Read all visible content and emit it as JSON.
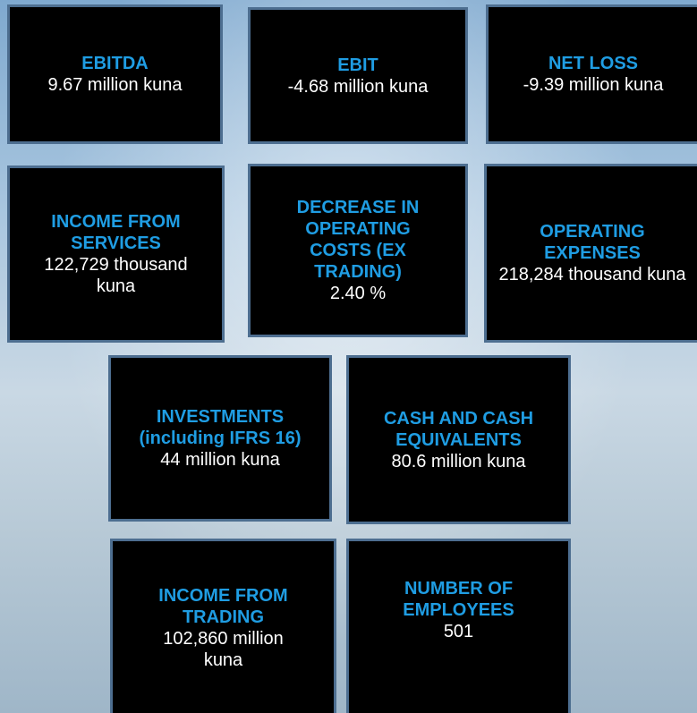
{
  "tiles": [
    {
      "title": "EBITDA",
      "value": "9.67 million kuna"
    },
    {
      "title": "EBIT",
      "value": "-4.68 million kuna"
    },
    {
      "title": "NET LOSS",
      "value": "-9.39 million kuna"
    },
    {
      "title": "INCOME FROM SERVICES",
      "value": "122,729 thousand kuna"
    },
    {
      "title": "DECREASE IN OPERATING COSTS (EX TRADING)",
      "value": "2.40 %"
    },
    {
      "title": "OPERATING EXPENSES",
      "value": "218,284 thousand kuna"
    },
    {
      "title": "INVESTMENTS (including IFRS 16)",
      "value": "44 million kuna"
    },
    {
      "title": "CASH AND CASH EQUIVALENTS",
      "value": "80.6 million kuna"
    },
    {
      "title": "INCOME FROM TRADING",
      "value": "102,860 million kuna"
    },
    {
      "title": "NUMBER OF EMPLOYEES",
      "value": "501"
    }
  ]
}
